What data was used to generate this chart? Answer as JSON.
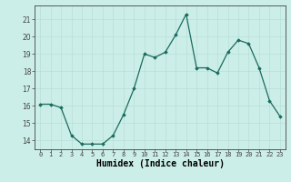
{
  "x": [
    0,
    1,
    2,
    3,
    4,
    5,
    6,
    7,
    8,
    9,
    10,
    11,
    12,
    13,
    14,
    15,
    16,
    17,
    18,
    19,
    20,
    21,
    22,
    23
  ],
  "y": [
    16.1,
    16.1,
    15.9,
    14.3,
    13.8,
    13.8,
    13.8,
    14.3,
    15.5,
    17.0,
    19.0,
    18.8,
    19.1,
    20.1,
    21.3,
    18.2,
    18.2,
    17.9,
    19.1,
    19.8,
    19.6,
    18.2,
    16.3,
    15.4
  ],
  "line_color": "#1a6b5e",
  "marker": "D",
  "markersize": 1.8,
  "linewidth": 0.9,
  "xlabel": "Humidex (Indice chaleur)",
  "xlabel_fontsize": 7,
  "xlabel_fontweight": "bold",
  "ylim": [
    13.5,
    21.8
  ],
  "xlim": [
    -0.5,
    23.5
  ],
  "yticks": [
    14,
    15,
    16,
    17,
    18,
    19,
    20,
    21
  ],
  "xticks": [
    0,
    1,
    2,
    3,
    4,
    5,
    6,
    7,
    8,
    9,
    10,
    11,
    12,
    13,
    14,
    15,
    16,
    17,
    18,
    19,
    20,
    21,
    22,
    23
  ],
  "xtick_labels": [
    "0",
    "1",
    "2",
    "3",
    "4",
    "5",
    "6",
    "7",
    "8",
    "9",
    "10",
    "11",
    "12",
    "13",
    "14",
    "15",
    "16",
    "17",
    "18",
    "19",
    "20",
    "21",
    "22",
    "23"
  ],
  "ytick_fontsize": 5.5,
  "xtick_fontsize": 5.0,
  "bg_color": "#cceee8",
  "grid_color": "#b8ddd8",
  "grid_linewidth": 0.5,
  "plot_bg_color": "#cceee8",
  "fig_bg_color": "#cceee8",
  "spine_color": "#444444"
}
